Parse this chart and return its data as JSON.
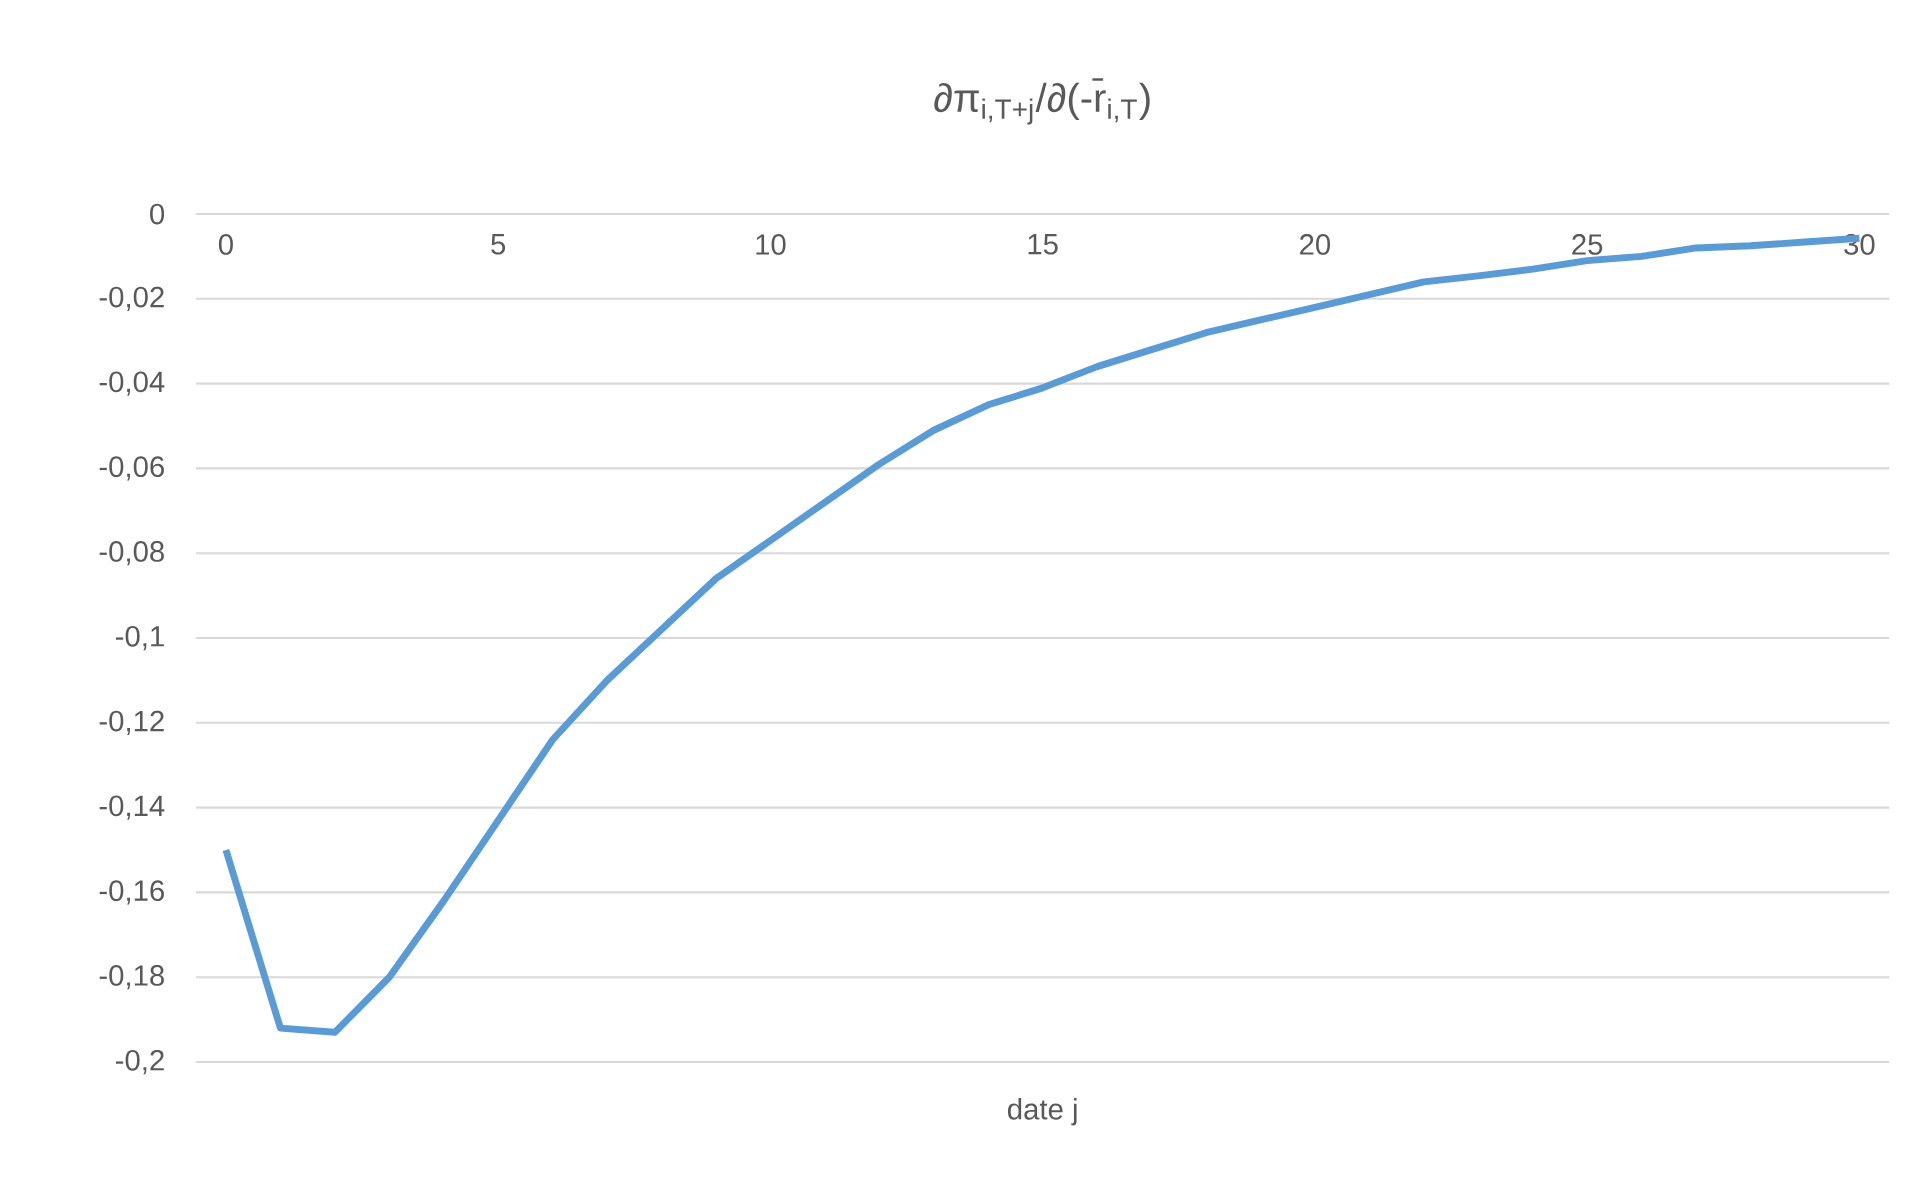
{
  "chart_data": {
    "type": "line",
    "title": "∂π$_{i,T+j}$/∂(-r̄$_{i,T}$)",
    "xlabel": "date j",
    "x": [
      0,
      1,
      2,
      3,
      4,
      5,
      6,
      7,
      8,
      9,
      10,
      11,
      12,
      13,
      14,
      15,
      16,
      17,
      18,
      19,
      20,
      21,
      22,
      23,
      24,
      25,
      26,
      27,
      28,
      29,
      30
    ],
    "series": [
      {
        "color": "#5b9bd5",
        "values": [
          -0.15,
          -0.192,
          -0.193,
          -0.18,
          -0.162,
          -0.143,
          -0.124,
          -0.11,
          -0.098,
          -0.086,
          -0.077,
          -0.068,
          -0.059,
          -0.051,
          -0.045,
          -0.041,
          -0.036,
          -0.032,
          -0.028,
          -0.025,
          -0.022,
          -0.019,
          -0.016,
          -0.0146,
          -0.013,
          -0.011,
          -0.01,
          -0.008,
          -0.0075,
          -0.0066,
          -0.0057
        ]
      }
    ],
    "xlim": [
      -0.55,
      30.55
    ],
    "xticks": [
      0,
      5,
      10,
      15,
      20,
      25,
      30
    ],
    "ylim": [
      -0.2,
      0
    ],
    "yticks": [
      {
        "value": -0.2,
        "label": "-0,2"
      },
      {
        "value": -0.18,
        "label": "-0,18"
      },
      {
        "value": -0.16,
        "label": "-0,16"
      },
      {
        "value": -0.14,
        "label": "-0,14"
      },
      {
        "value": -0.12,
        "label": "-0,12"
      },
      {
        "value": -0.1,
        "label": "-0,1"
      },
      {
        "value": -0.08,
        "label": "-0,08"
      },
      {
        "value": -0.06,
        "label": "-0,06"
      },
      {
        "value": -0.04,
        "label": "-0,04"
      },
      {
        "value": -0.02,
        "label": "-0,02"
      },
      {
        "value": 0,
        "label": "0"
      }
    ],
    "grid": "y",
    "marker": "none",
    "line_style": "solid"
  }
}
